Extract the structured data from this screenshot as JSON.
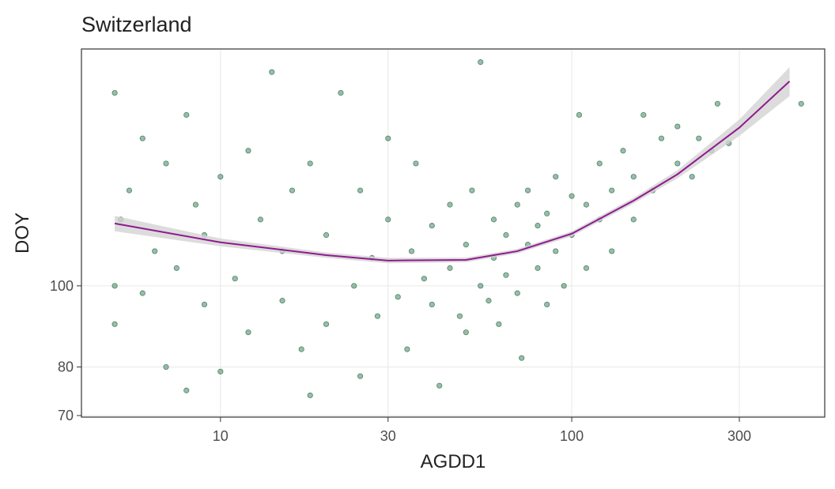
{
  "chart_data": {
    "type": "scatter",
    "title": "Switzerland",
    "x_label": "AGDD1",
    "y_label": "DOY",
    "log_x": true,
    "log_y": true,
    "grid": true,
    "xlim": [
      4.02,
      525
    ],
    "ylim": [
      69.7,
      191.8
    ],
    "xticks": [
      10,
      30,
      100,
      300
    ],
    "yticks": [
      70,
      80,
      100
    ],
    "color": "#2e7d52",
    "x": [
      5,
      5,
      5,
      5.2,
      5.5,
      6,
      6,
      6.5,
      7,
      7,
      7.5,
      8,
      8,
      8.5,
      9,
      9,
      10,
      10,
      11,
      12,
      12,
      13,
      14,
      15,
      15,
      16,
      17,
      18,
      18,
      20,
      20,
      22,
      24,
      25,
      25,
      27,
      28,
      30,
      30,
      32,
      34,
      35,
      36,
      38,
      40,
      40,
      42,
      45,
      45,
      48,
      50,
      50,
      52,
      55,
      55,
      58,
      60,
      60,
      62,
      65,
      65,
      70,
      70,
      72,
      75,
      75,
      80,
      80,
      85,
      85,
      90,
      90,
      95,
      100,
      100,
      105,
      110,
      110,
      120,
      120,
      130,
      130,
      140,
      150,
      150,
      160,
      170,
      180,
      200,
      200,
      220,
      230,
      250,
      260,
      280,
      450
    ],
    "y": [
      100,
      170,
      90,
      120,
      130,
      98,
      150,
      110,
      80,
      140,
      105,
      75,
      160,
      125,
      95,
      115,
      79,
      135,
      102,
      145,
      88,
      120,
      180,
      96,
      110,
      130,
      84,
      74,
      140,
      90,
      115,
      170,
      100,
      78,
      130,
      108,
      92,
      120,
      150,
      97,
      84,
      110,
      140,
      102,
      95,
      118,
      76,
      105,
      125,
      92,
      88,
      112,
      130,
      185,
      100,
      96,
      108,
      120,
      90,
      115,
      103,
      125,
      98,
      82,
      112,
      130,
      105,
      118,
      95,
      122,
      110,
      135,
      100,
      115,
      128,
      160,
      105,
      125,
      120,
      140,
      110,
      130,
      145,
      120,
      135,
      160,
      130,
      150,
      140,
      155,
      135,
      150,
      145,
      165,
      148,
      165
    ],
    "smooth": {
      "color": "#8e1b8e",
      "band_color": "#d3d3d3",
      "x": [
        5,
        10,
        20,
        30,
        50,
        70,
        100,
        150,
        200,
        300,
        417
      ],
      "y": [
        118.7,
        112.7,
        108.8,
        107.2,
        107.4,
        110,
        115.4,
        126.4,
        135.9,
        154.5,
        175.5
      ],
      "lower": [
        116.2,
        111.5,
        108,
        106.4,
        106.7,
        109.3,
        114.6,
        125.4,
        134.4,
        151,
        168.5
      ],
      "upper": [
        121.2,
        113.9,
        109.6,
        108,
        108.1,
        110.7,
        116.2,
        127.4,
        137.4,
        158,
        182.5
      ]
    }
  }
}
